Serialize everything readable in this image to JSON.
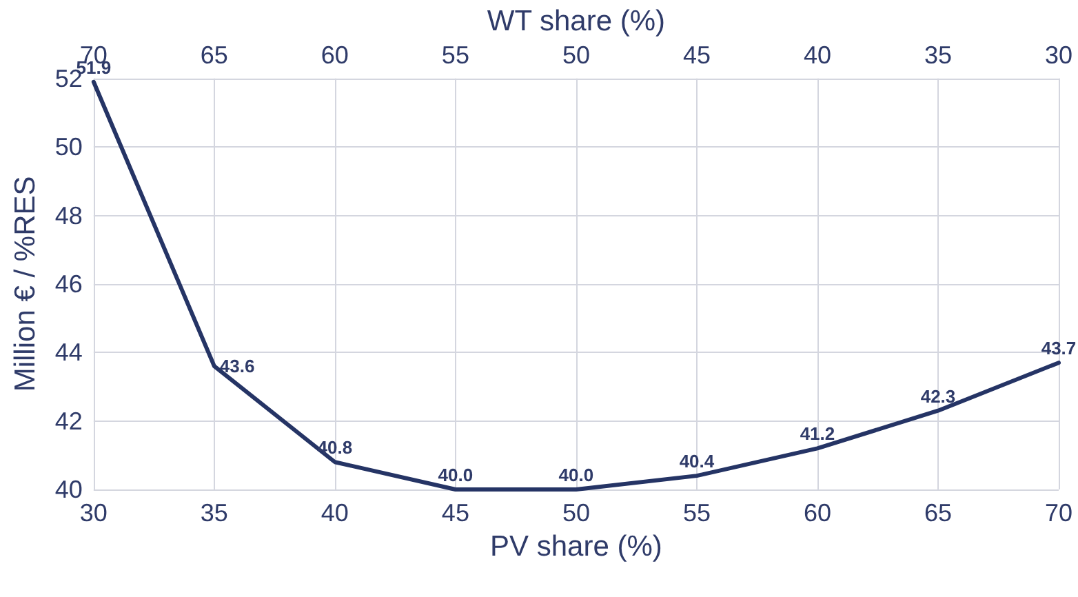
{
  "chart_data": {
    "type": "line",
    "x": [
      30,
      35,
      40,
      45,
      50,
      55,
      60,
      65,
      70
    ],
    "series": [
      {
        "color": "#253465",
        "values": [
          51.9,
          43.6,
          40.8,
          40.0,
          40.0,
          40.4,
          41.2,
          42.3,
          43.7
        ],
        "value_labels": [
          "51.9",
          "43.6",
          "40.8",
          "40.0",
          "40.0",
          "40.4",
          "41.2",
          "42.3",
          "43.7"
        ]
      }
    ],
    "xlabel": "PV share (%)",
    "x2label": "WT share (%)",
    "ylabel": "Million € / %RES",
    "xlim": [
      30,
      70
    ],
    "xticks": [
      30,
      35,
      40,
      45,
      50,
      55,
      60,
      65,
      70
    ],
    "x2lim": [
      70,
      30
    ],
    "x2ticks": [
      70,
      65,
      60,
      55,
      50,
      45,
      40,
      35,
      30
    ],
    "ylim": [
      40,
      52
    ],
    "yticks": [
      40,
      42,
      44,
      46,
      48,
      50,
      52
    ],
    "grid": true,
    "marker": "none",
    "line_style": "solid"
  }
}
